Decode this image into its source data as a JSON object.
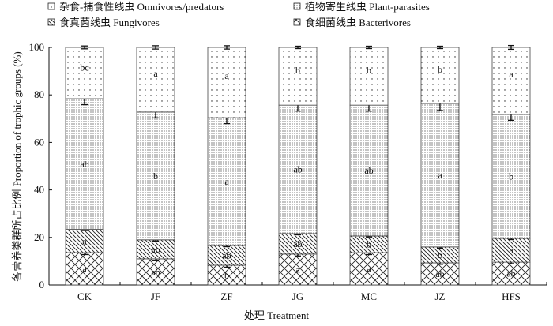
{
  "chart_data": {
    "type": "bar",
    "stacked": true,
    "title": "",
    "xlabel": "处理 Treatment",
    "ylabel": "各营养类群所占比例 Proportion of trophic groups (%)",
    "ylim": [
      0,
      100
    ],
    "yticks": [
      "0",
      "20",
      "40",
      "60",
      "80",
      "100"
    ],
    "categories": [
      "CK",
      "JF",
      "ZF",
      "JG",
      "MC",
      "JZ",
      "HFS"
    ],
    "legend_position": "top",
    "series": [
      {
        "name": "食细菌线虫 Bacterivores",
        "pattern": "crosshatch",
        "values": [
          13.6,
          11.0,
          8.3,
          13.0,
          13.6,
          9.3,
          9.6
        ],
        "errors": [
          0.8,
          0.8,
          0.8,
          0.8,
          0.8,
          0.6,
          0.6
        ],
        "letters": [
          "a",
          "ab",
          "b",
          "a",
          "a",
          "ab",
          "ab"
        ]
      },
      {
        "name": "食真菌线虫 Fungivores",
        "pattern": "diagonal",
        "values": [
          9.8,
          8.0,
          8.3,
          8.6,
          7.0,
          6.7,
          10.0
        ],
        "errors": [
          0.5,
          0.5,
          0.5,
          0.5,
          0.4,
          0.5,
          0.5
        ],
        "letters": [
          "a",
          "ab",
          "ab",
          "ab",
          "b",
          "b",
          "a"
        ]
      },
      {
        "name": "植物寄生线虫 Plant-parasites",
        "pattern": "dense-dots",
        "values": [
          55.0,
          53.8,
          53.8,
          54.1,
          55.1,
          60.4,
          52.2
        ],
        "errors": [
          2.5,
          2.5,
          2.5,
          2.5,
          2.5,
          3.0,
          2.5
        ],
        "letters": [
          "ab",
          "b",
          "a",
          "ab",
          "ab",
          "a",
          "b"
        ]
      },
      {
        "name": "杂食-捕食性线虫 Omnivores/predators",
        "pattern": "sparse-dots",
        "values": [
          21.6,
          27.2,
          29.6,
          24.3,
          24.3,
          23.6,
          28.2
        ],
        "errors": [
          0.6,
          0.7,
          0.7,
          0.5,
          0.5,
          0.5,
          0.8
        ],
        "letters": [
          "bc",
          "a",
          "a",
          "b",
          "b",
          "b",
          "a"
        ]
      }
    ]
  }
}
